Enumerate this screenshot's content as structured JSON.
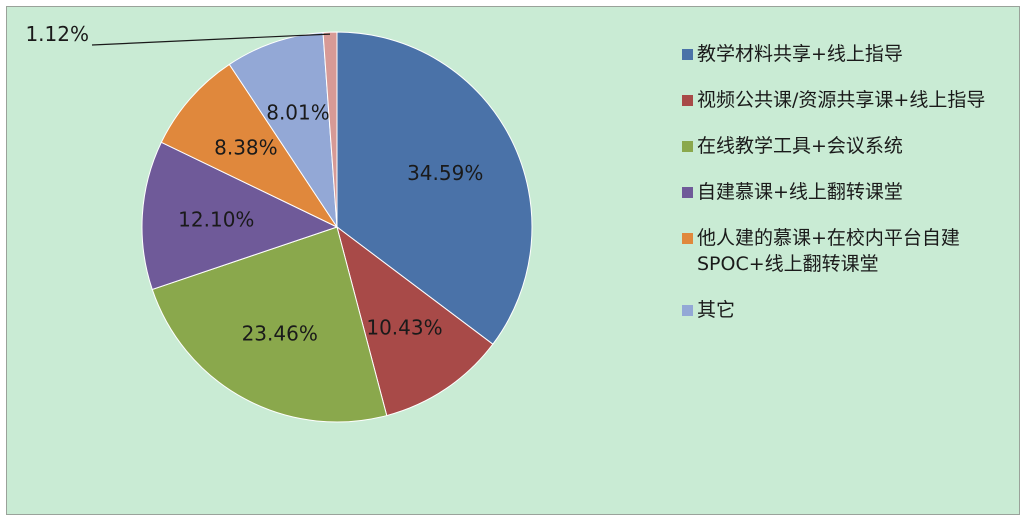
{
  "chart_data": {
    "type": "pie",
    "title": "",
    "start_angle_deg": 0,
    "series": [
      {
        "name": "",
        "slices": [
          {
            "label": "教学材料共享+线上指导",
            "value": 34.59,
            "value_label": "34.59%",
            "color": "#4a72a8"
          },
          {
            "label": "视频公共课/资源共享课+线上指导",
            "value": 10.43,
            "value_label": "10.43%",
            "color": "#a84a48"
          },
          {
            "label": "在线教学工具+会议系统",
            "value": 23.46,
            "value_label": "23.46%",
            "color": "#8aa84c"
          },
          {
            "label": "自建慕课+线上翻转课堂",
            "value": 12.1,
            "value_label": "12.10%",
            "color": "#6f5a99"
          },
          {
            "label": "他人建的慕课+在校内平台自建SPOC+线上翻转课堂",
            "value": 8.38,
            "value_label": "8.38%",
            "color": "#e0883c"
          },
          {
            "label": "其它",
            "value": 8.01,
            "value_label": "8.01%",
            "color": "#93a8d6"
          },
          {
            "label": "",
            "value": 1.12,
            "value_label": "1.12%",
            "color": "#d79a96"
          }
        ]
      }
    ],
    "legend": {
      "position": "right",
      "entries": [
        {
          "label": "教学材料共享+线上指导",
          "color": "#4a72a8"
        },
        {
          "label": "视频公共课/资源共享课+线上指导",
          "color": "#a84a48"
        },
        {
          "label": "在线教学工具+会议系统",
          "color": "#8aa84c"
        },
        {
          "label": "自建慕课+线上翻转课堂",
          "color": "#6f5a99"
        },
        {
          "label": "他人建的慕课+在校内平台自建SPOC+线上翻转课堂",
          "color": "#e0883c"
        },
        {
          "label": "其它",
          "color": "#93a8d6"
        }
      ]
    }
  }
}
